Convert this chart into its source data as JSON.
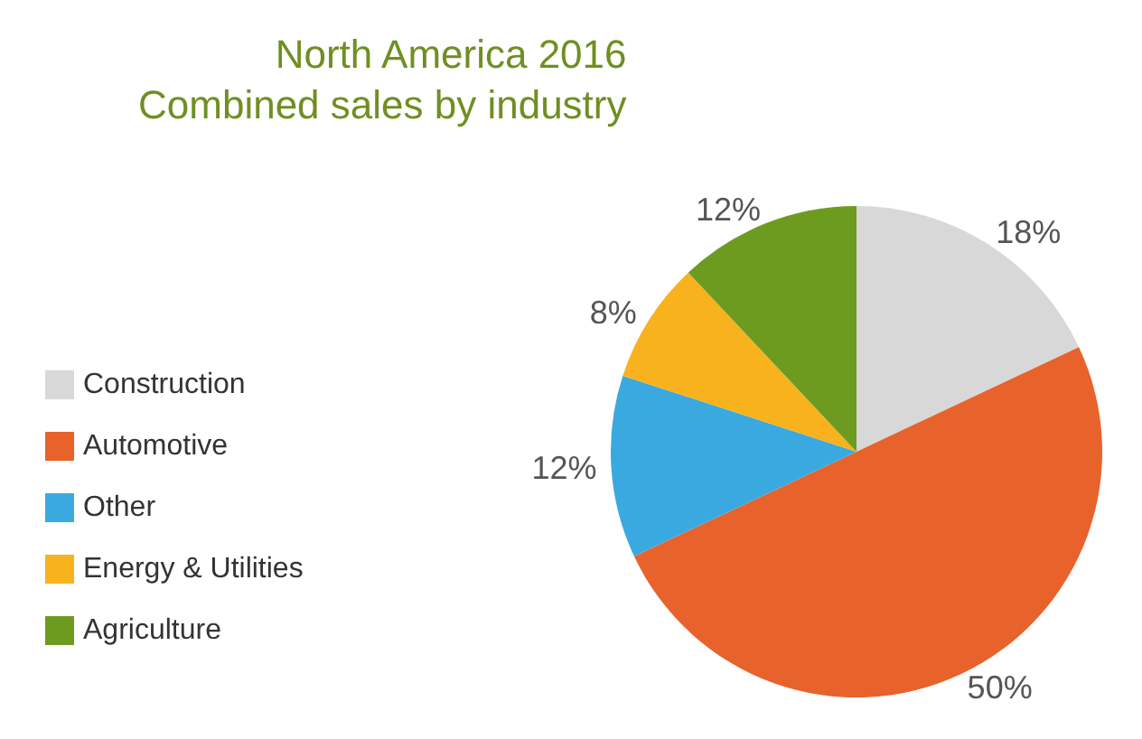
{
  "chart_data": {
    "type": "pie",
    "title": "North America 2016",
    "subtitle": "Combined sales by industry",
    "categories": [
      "Construction",
      "Automotive",
      "Other",
      "Energy & Utilities",
      "Agriculture"
    ],
    "values": [
      18,
      50,
      12,
      8,
      12
    ],
    "colors": [
      "#d9d8d8",
      "#e8622c",
      "#3aa9df",
      "#f8b21e",
      "#6d9b1f"
    ],
    "value_labels": [
      "18%",
      "50%",
      "12%",
      "8%",
      "12%"
    ],
    "legend": "left"
  }
}
